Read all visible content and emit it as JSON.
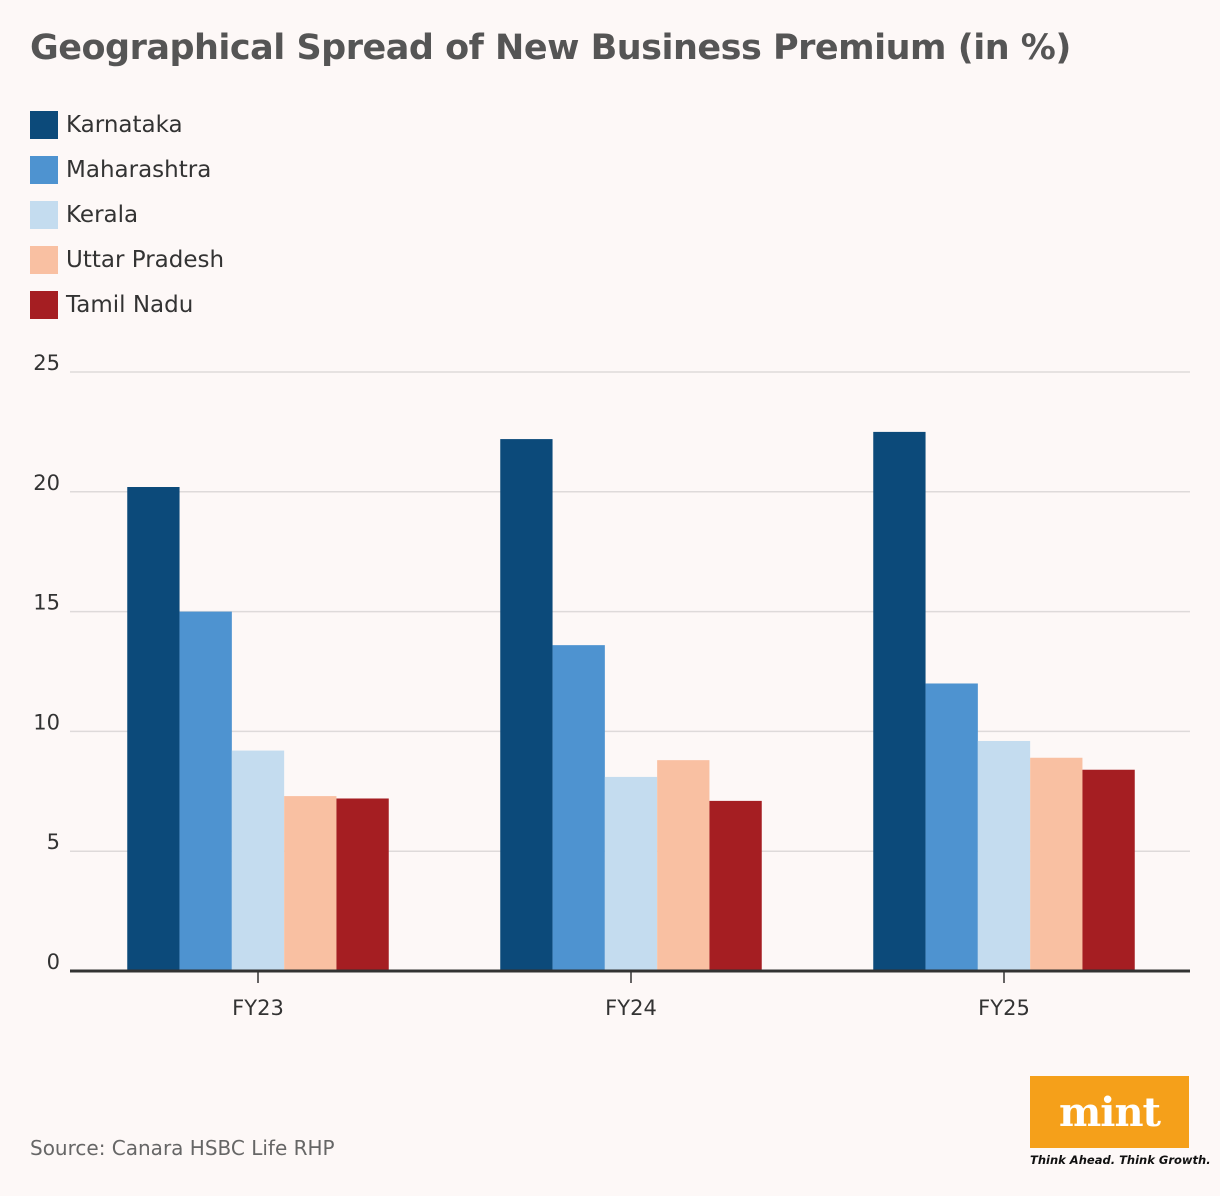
{
  "title": "Geographical Spread of New Business Premium (in %)",
  "source": "Source: Canara HSBC Life RHP",
  "logo": {
    "text": "mint",
    "tagline": "Think Ahead. Think Growth.",
    "color": "#f5a01a"
  },
  "chart_data": {
    "type": "bar",
    "title": "Geographical Spread of New Business Premium (in %)",
    "xlabel": "",
    "ylabel": "",
    "categories": [
      "FY23",
      "FY24",
      "FY25"
    ],
    "ylim": [
      0,
      25
    ],
    "yticks": [
      0,
      5,
      10,
      15,
      20,
      25
    ],
    "grid": true,
    "legend_position": "top-left",
    "series": [
      {
        "name": "Karnataka",
        "color": "#0c4a7a",
        "values": [
          20.2,
          22.2,
          22.5
        ]
      },
      {
        "name": "Maharashtra",
        "color": "#4e93d0",
        "values": [
          15.0,
          13.6,
          12.0
        ]
      },
      {
        "name": "Kerala",
        "color": "#c4dcef",
        "values": [
          9.2,
          8.1,
          9.6
        ]
      },
      {
        "name": "Uttar Pradesh",
        "color": "#f9c0a2",
        "values": [
          7.3,
          8.8,
          8.9
        ]
      },
      {
        "name": "Tamil Nadu",
        "color": "#a51e22",
        "values": [
          7.2,
          7.1,
          8.4
        ]
      }
    ]
  }
}
